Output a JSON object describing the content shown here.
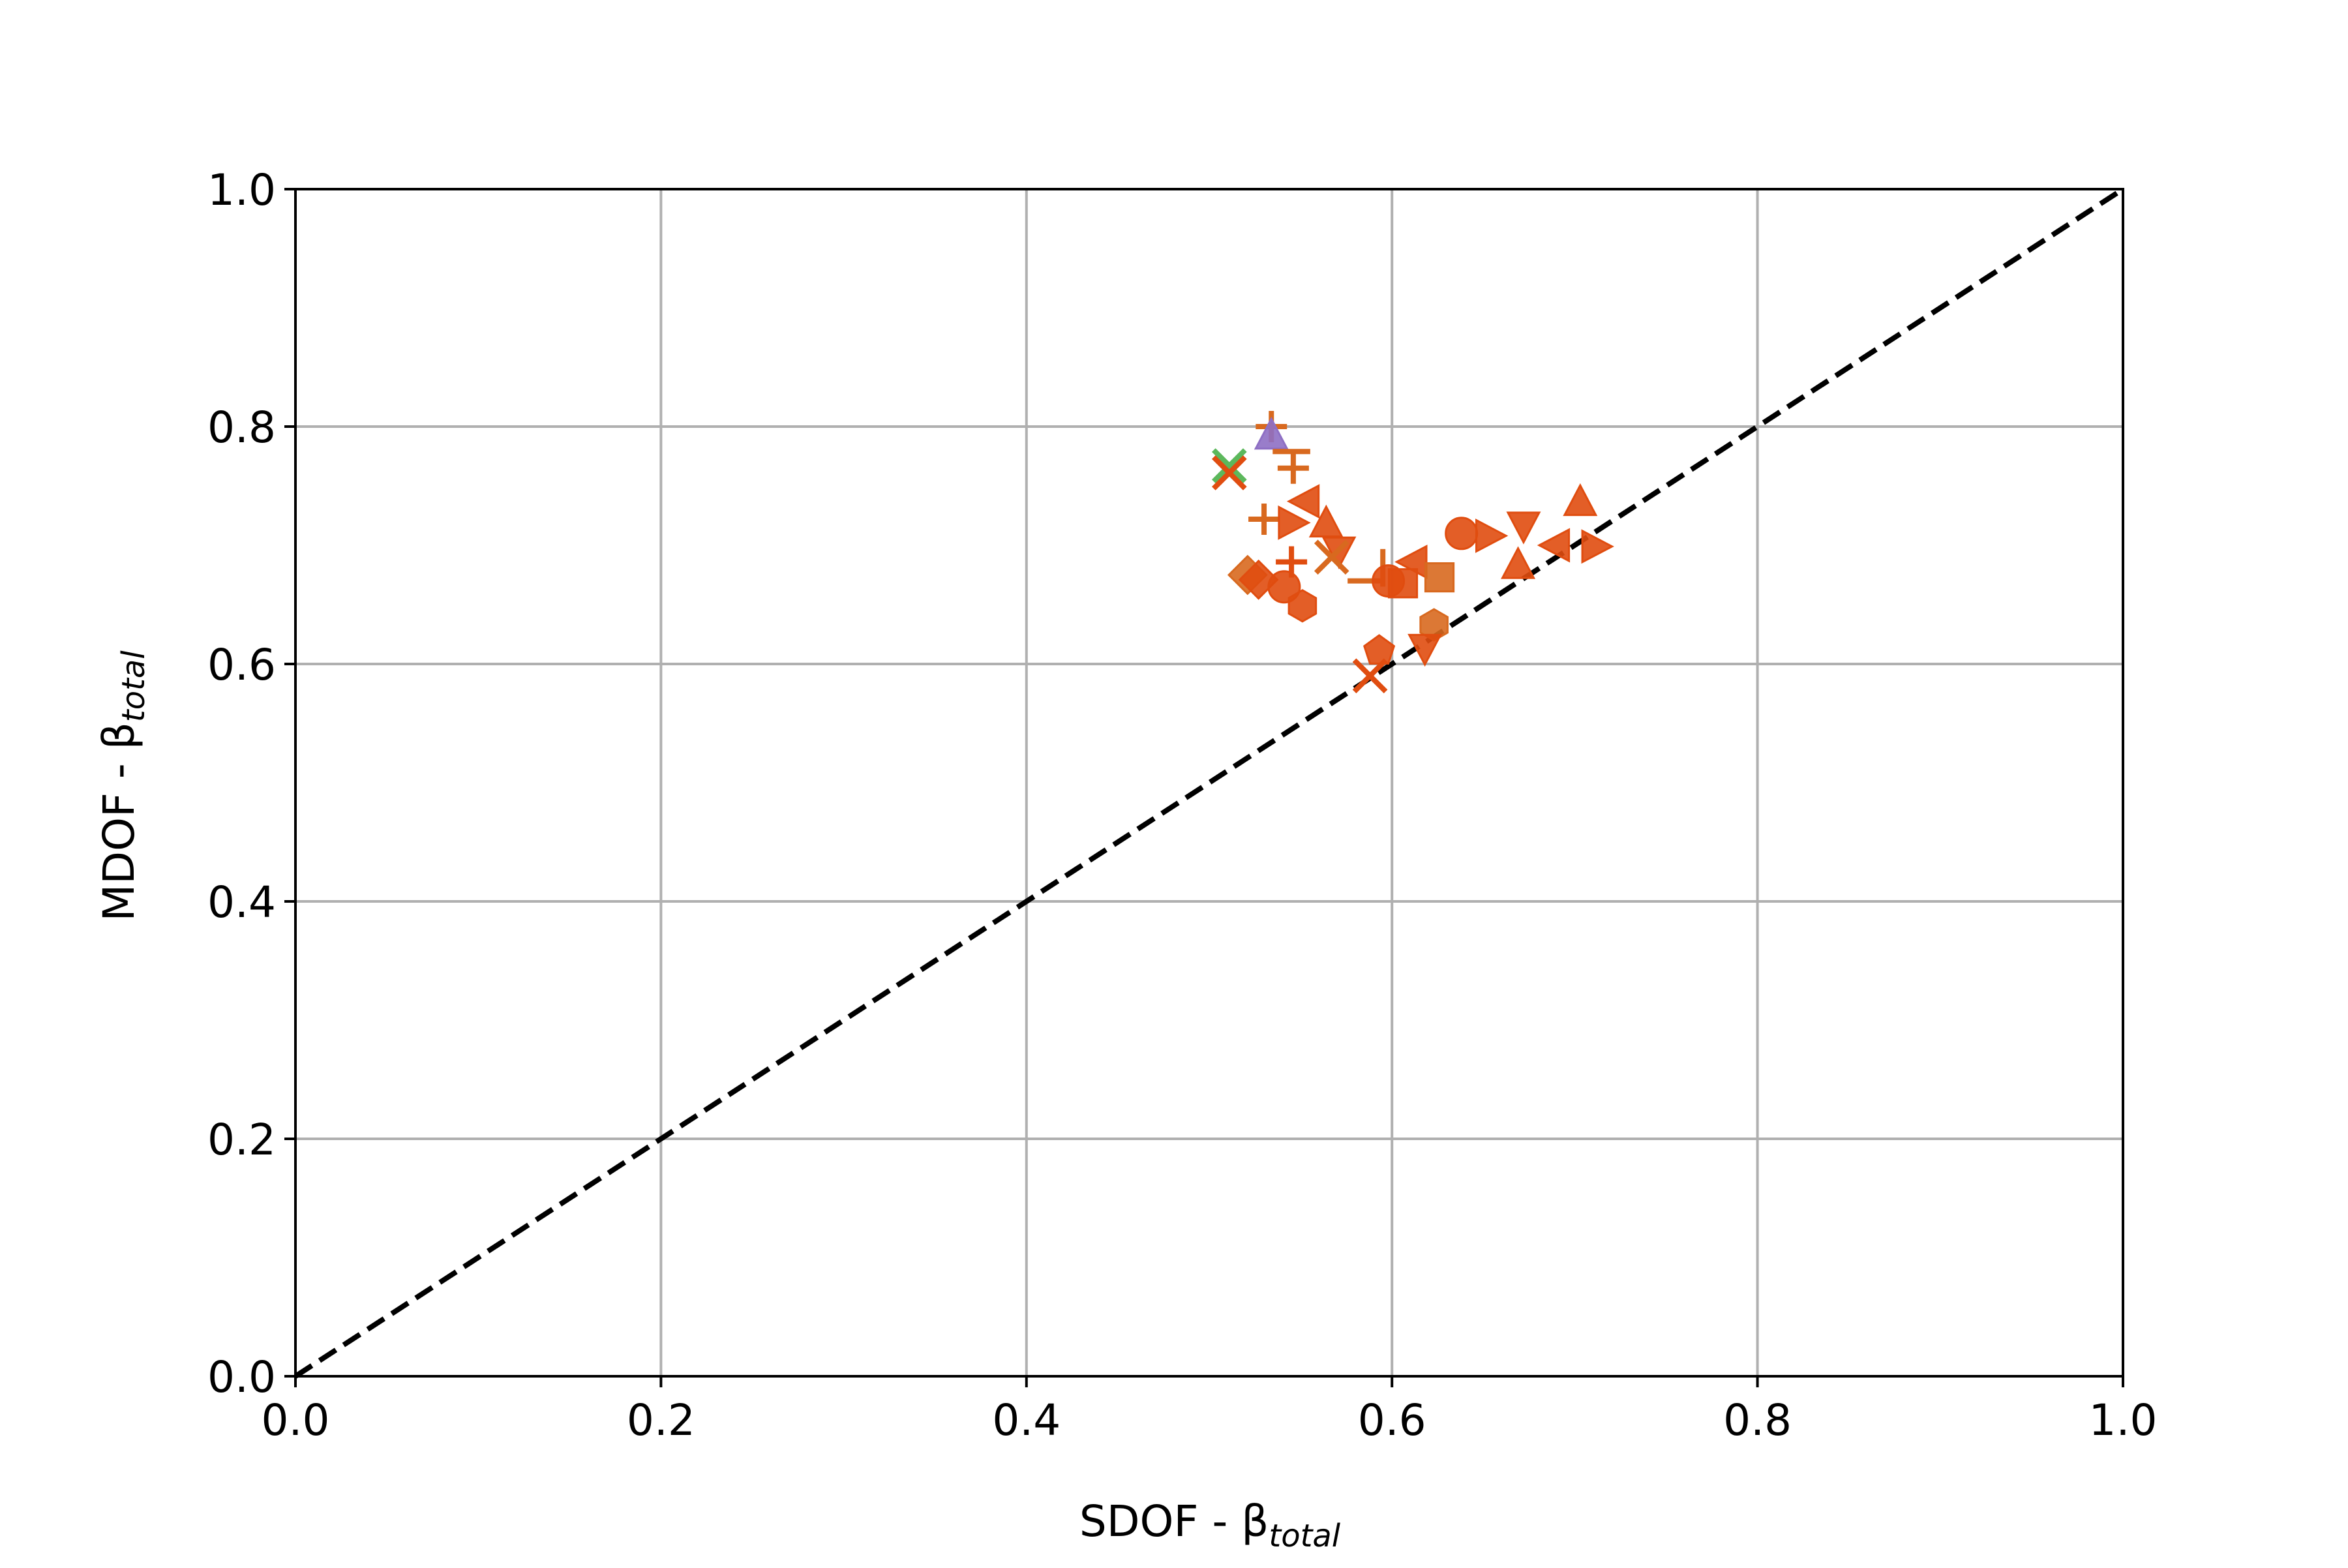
{
  "chart_data": {
    "type": "scatter",
    "xlabel": "SDOF - β",
    "xlabel_sub": "total",
    "ylabel": "MDOF - β",
    "ylabel_sub": "total",
    "xlim": [
      0,
      1
    ],
    "ylim": [
      0,
      1
    ],
    "xticks": [
      "0.0",
      "0.2",
      "0.4",
      "0.6",
      "0.8",
      "1.0"
    ],
    "yticks": [
      "0.0",
      "0.2",
      "0.4",
      "0.6",
      "0.8",
      "1.0"
    ],
    "grid": true,
    "reference_line": {
      "style": "dashed",
      "color": "#000000",
      "from": [
        0,
        0
      ],
      "to": [
        1,
        1
      ]
    },
    "marker_colors": {
      "primary": "#e04d10",
      "secondary": "#d8691f",
      "green": "#5cb85c",
      "purple": "#8e6fc4"
    },
    "points": [
      {
        "x": 0.511,
        "y": 0.767,
        "marker": "x",
        "color": "#5cb85c"
      },
      {
        "x": 0.511,
        "y": 0.761,
        "marker": "x",
        "color": "#e04d10"
      },
      {
        "x": 0.534,
        "y": 0.8,
        "marker": "+",
        "color": "#d8691f"
      },
      {
        "x": 0.534,
        "y": 0.792,
        "marker": "^",
        "color": "#8e6fc4"
      },
      {
        "x": 0.545,
        "y": 0.779,
        "marker": "_",
        "color": "#d8691f"
      },
      {
        "x": 0.546,
        "y": 0.765,
        "marker": "+",
        "color": "#d8691f"
      },
      {
        "x": 0.553,
        "y": 0.737,
        "marker": "<",
        "color": "#e04d10"
      },
      {
        "x": 0.53,
        "y": 0.722,
        "marker": "+",
        "color": "#d8691f"
      },
      {
        "x": 0.545,
        "y": 0.719,
        "marker": ">",
        "color": "#e04d10"
      },
      {
        "x": 0.564,
        "y": 0.718,
        "marker": "^",
        "color": "#e04d10"
      },
      {
        "x": 0.571,
        "y": 0.696,
        "marker": "v",
        "color": "#e04d10"
      },
      {
        "x": 0.567,
        "y": 0.69,
        "marker": "x",
        "color": "#d8691f"
      },
      {
        "x": 0.545,
        "y": 0.686,
        "marker": "+",
        "color": "#e04d10"
      },
      {
        "x": 0.521,
        "y": 0.675,
        "marker": "D",
        "color": "#d8691f"
      },
      {
        "x": 0.527,
        "y": 0.671,
        "marker": "D",
        "color": "#e04d10"
      },
      {
        "x": 0.541,
        "y": 0.665,
        "marker": "o",
        "color": "#e04d10"
      },
      {
        "x": 0.551,
        "y": 0.649,
        "marker": "h",
        "color": "#e04d10"
      },
      {
        "x": 0.586,
        "y": 0.67,
        "marker": "_",
        "color": "#d8691f"
      },
      {
        "x": 0.595,
        "y": 0.681,
        "marker": "|",
        "color": "#d8691f"
      },
      {
        "x": 0.598,
        "y": 0.67,
        "marker": "o",
        "color": "#e04d10"
      },
      {
        "x": 0.606,
        "y": 0.668,
        "marker": "s",
        "color": "#e04d10"
      },
      {
        "x": 0.612,
        "y": 0.686,
        "marker": "<",
        "color": "#e04d10"
      },
      {
        "x": 0.626,
        "y": 0.673,
        "marker": "s",
        "color": "#d8691f"
      },
      {
        "x": 0.638,
        "y": 0.71,
        "marker": "o",
        "color": "#e04d10"
      },
      {
        "x": 0.653,
        "y": 0.708,
        "marker": ">",
        "color": "#e04d10"
      },
      {
        "x": 0.672,
        "y": 0.717,
        "marker": "v",
        "color": "#e04d10"
      },
      {
        "x": 0.69,
        "y": 0.7,
        "marker": "<",
        "color": "#e04d10"
      },
      {
        "x": 0.703,
        "y": 0.736,
        "marker": "^",
        "color": "#e04d10"
      },
      {
        "x": 0.711,
        "y": 0.699,
        "marker": ">",
        "color": "#e04d10"
      },
      {
        "x": 0.669,
        "y": 0.683,
        "marker": "^",
        "color": "#e04d10"
      },
      {
        "x": 0.623,
        "y": 0.633,
        "marker": "h",
        "color": "#d8691f"
      },
      {
        "x": 0.618,
        "y": 0.614,
        "marker": "v",
        "color": "#e04d10"
      },
      {
        "x": 0.593,
        "y": 0.611,
        "marker": "p",
        "color": "#e04d10"
      },
      {
        "x": 0.588,
        "y": 0.59,
        "marker": "x",
        "color": "#e04d10"
      }
    ]
  }
}
